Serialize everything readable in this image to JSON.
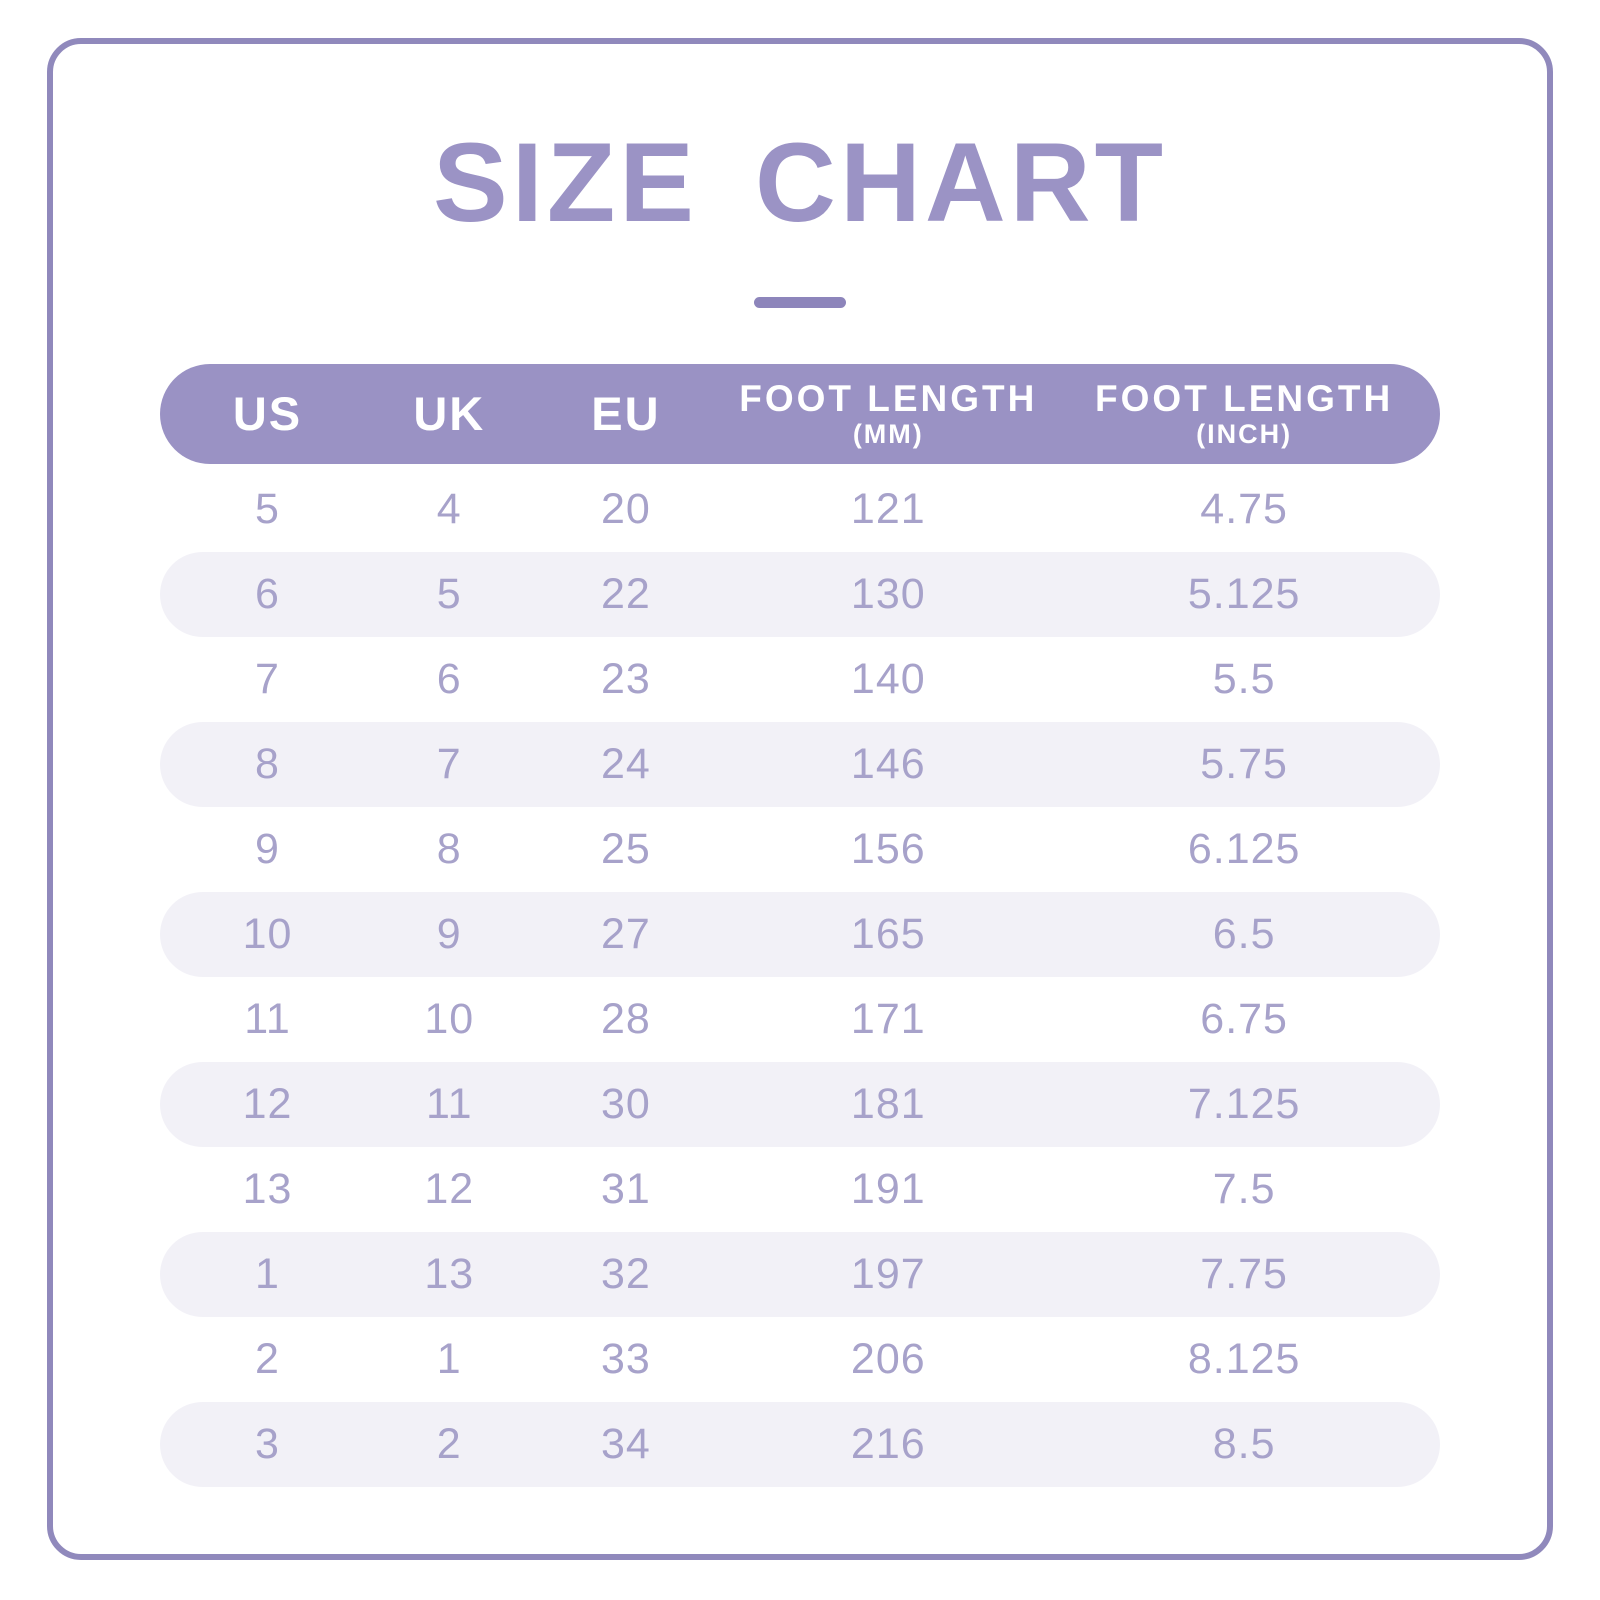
{
  "page_title": "SIZE CHART",
  "colors": {
    "accent_purple": "#9a92c4",
    "title_purple": "#9b93c5",
    "frame_border": "#9089bc",
    "row_alt_bg": "#f2f1f7",
    "cell_text": "#a7a2ca",
    "header_text": "#ffffff"
  },
  "header": {
    "columns": [
      {
        "label": "US",
        "sub": ""
      },
      {
        "label": "UK",
        "sub": ""
      },
      {
        "label": "EU",
        "sub": ""
      },
      {
        "label": "FOOT LENGTH",
        "sub": "(MM)"
      },
      {
        "label": "FOOT LENGTH",
        "sub": "(INCH)"
      }
    ]
  },
  "chart_data": {
    "type": "table",
    "title": "SIZE CHART",
    "columns": [
      "US",
      "UK",
      "EU",
      "FOOT LENGTH (MM)",
      "FOOT LENGTH (INCH)"
    ],
    "rows": [
      [
        "5",
        "4",
        "20",
        "121",
        "4.75"
      ],
      [
        "6",
        "5",
        "22",
        "130",
        "5.125"
      ],
      [
        "7",
        "6",
        "23",
        "140",
        "5.5"
      ],
      [
        "8",
        "7",
        "24",
        "146",
        "5.75"
      ],
      [
        "9",
        "8",
        "25",
        "156",
        "6.125"
      ],
      [
        "10",
        "9",
        "27",
        "165",
        "6.5"
      ],
      [
        "11",
        "10",
        "28",
        "171",
        "6.75"
      ],
      [
        "12",
        "11",
        "30",
        "181",
        "7.125"
      ],
      [
        "13",
        "12",
        "31",
        "191",
        "7.5"
      ],
      [
        "1",
        "13",
        "32",
        "197",
        "7.75"
      ],
      [
        "2",
        "1",
        "33",
        "206",
        "8.125"
      ],
      [
        "3",
        "2",
        "34",
        "216",
        "8.5"
      ]
    ]
  }
}
